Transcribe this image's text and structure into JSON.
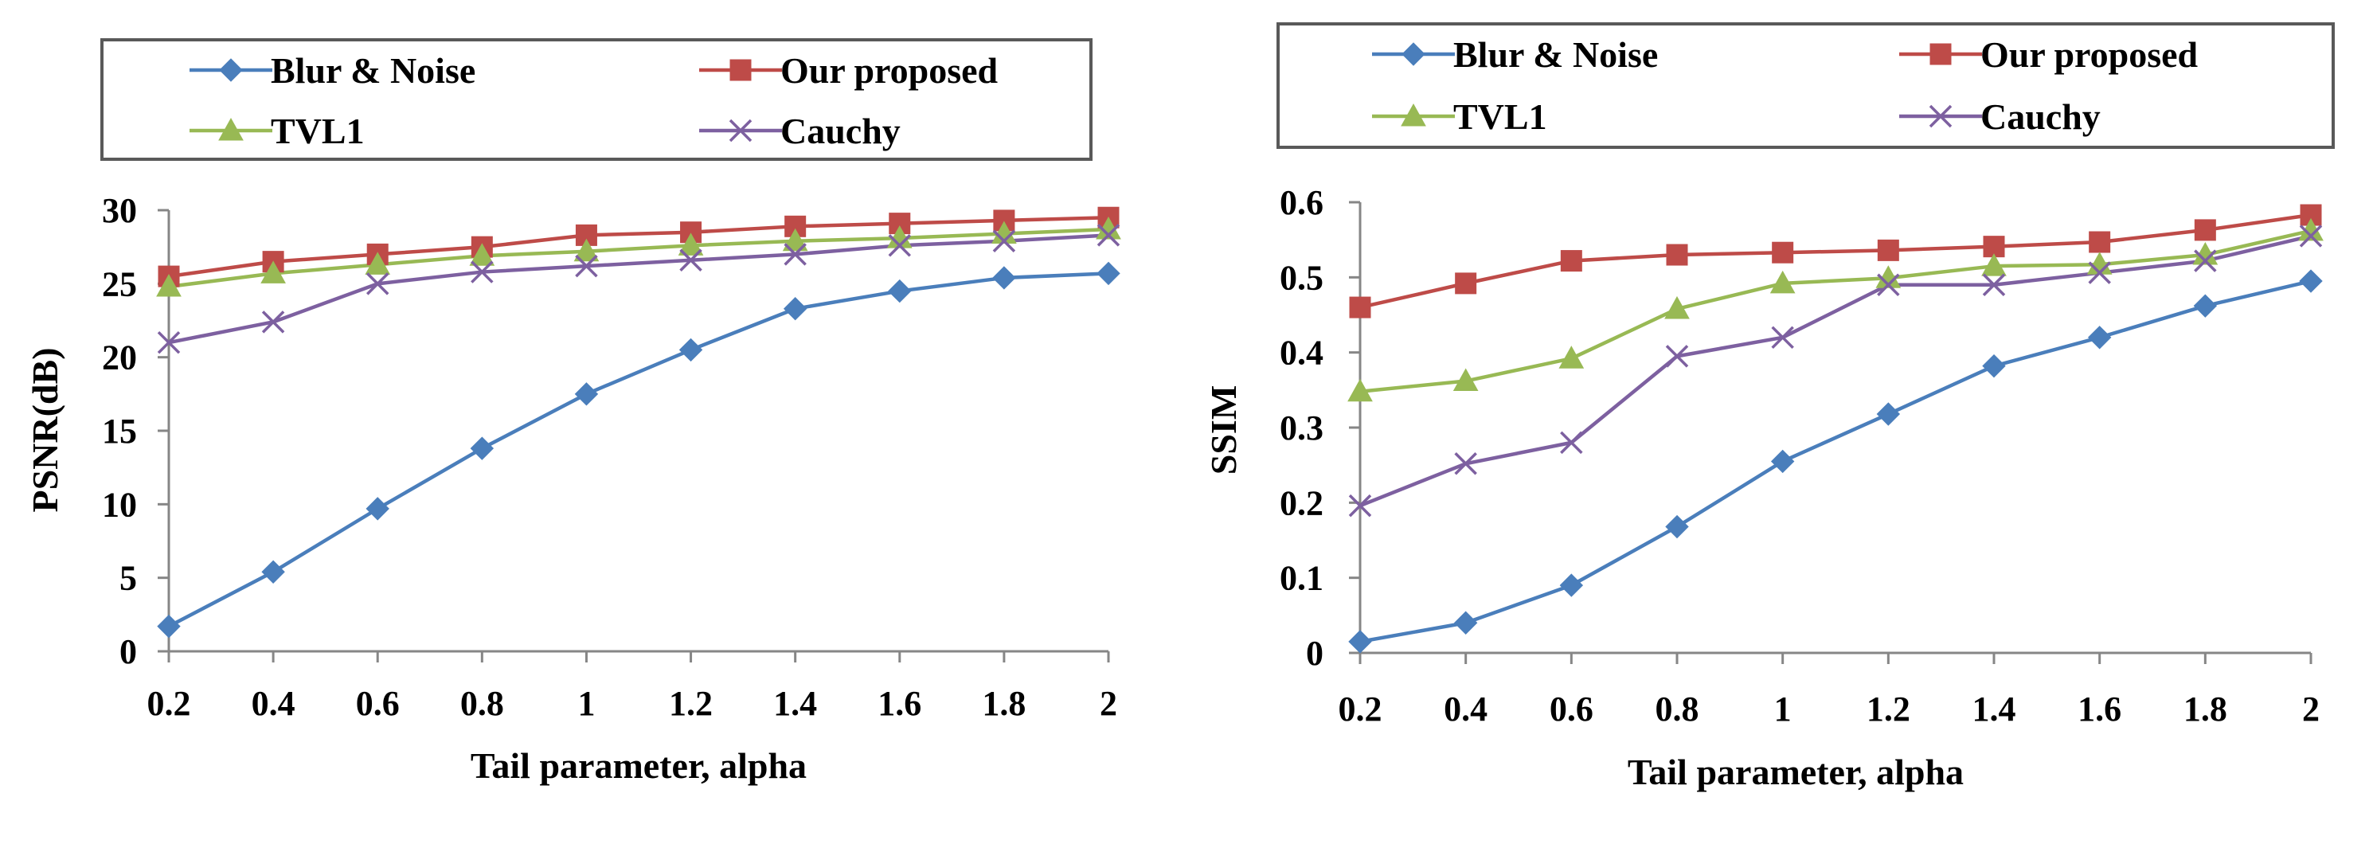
{
  "colors": {
    "blur_noise": "#4A7EBB",
    "our_proposed": "#BE4B48",
    "tvl1": "#98B954",
    "cauchy": "#7D60A0",
    "axis": "#868686",
    "legend_border": "#595959"
  },
  "chart_data": [
    {
      "type": "line",
      "xlabel": "Tail parameter,  alpha",
      "ylabel": "PSNR(dB)",
      "ylim": [
        0,
        30
      ],
      "yticks": [
        "0",
        "5",
        "10",
        "15",
        "20",
        "25",
        "30"
      ],
      "categories": [
        "0.2",
        "0.4",
        "0.6",
        "0.8",
        "1",
        "1.2",
        "1.4",
        "1.6",
        "1.8",
        "2"
      ],
      "legend_position": "top",
      "series": [
        {
          "name": "Blur & Noise",
          "marker": "diamond",
          "color_key": "blur_noise",
          "values": [
            1.7,
            5.4,
            9.7,
            13.8,
            17.5,
            20.5,
            23.3,
            24.5,
            25.4,
            25.7
          ]
        },
        {
          "name": "Our proposed",
          "marker": "square",
          "color_key": "our_proposed",
          "values": [
            25.5,
            26.5,
            27.0,
            27.5,
            28.3,
            28.5,
            28.9,
            29.1,
            29.3,
            29.5
          ]
        },
        {
          "name": "TVL1",
          "marker": "triangle",
          "color_key": "tvl1",
          "values": [
            24.8,
            25.7,
            26.3,
            26.9,
            27.2,
            27.6,
            27.9,
            28.1,
            28.4,
            28.7
          ]
        },
        {
          "name": "Cauchy",
          "marker": "x",
          "color_key": "cauchy",
          "values": [
            21.0,
            22.4,
            25.0,
            25.8,
            26.2,
            26.6,
            27.0,
            27.6,
            27.9,
            28.3
          ]
        }
      ]
    },
    {
      "type": "line",
      "xlabel": "Tail parameter,  alpha",
      "ylabel": "SSIM",
      "ylim": [
        0,
        0.6
      ],
      "yticks": [
        "0",
        "0.1",
        "0.2",
        "0.3",
        "0.4",
        "0.5",
        "0.6"
      ],
      "categories": [
        "0.2",
        "0.4",
        "0.6",
        "0.8",
        "1",
        "1.2",
        "1.4",
        "1.6",
        "1.8",
        "2"
      ],
      "legend_position": "top",
      "series": [
        {
          "name": "Blur & Noise",
          "marker": "diamond",
          "color_key": "blur_noise",
          "values": [
            0.015,
            0.04,
            0.09,
            0.168,
            0.255,
            0.318,
            0.382,
            0.42,
            0.462,
            0.495
          ]
        },
        {
          "name": "Our proposed",
          "marker": "square",
          "color_key": "our_proposed",
          "values": [
            0.46,
            0.492,
            0.522,
            0.53,
            0.533,
            0.536,
            0.541,
            0.547,
            0.563,
            0.583
          ]
        },
        {
          "name": "TVL1",
          "marker": "triangle",
          "color_key": "tvl1",
          "values": [
            0.348,
            0.362,
            0.392,
            0.458,
            0.492,
            0.499,
            0.515,
            0.517,
            0.53,
            0.562
          ]
        },
        {
          "name": "Cauchy",
          "marker": "x",
          "color_key": "cauchy",
          "values": [
            0.196,
            0.252,
            0.28,
            0.395,
            0.42,
            0.49,
            0.49,
            0.506,
            0.522,
            0.555
          ]
        }
      ]
    }
  ]
}
